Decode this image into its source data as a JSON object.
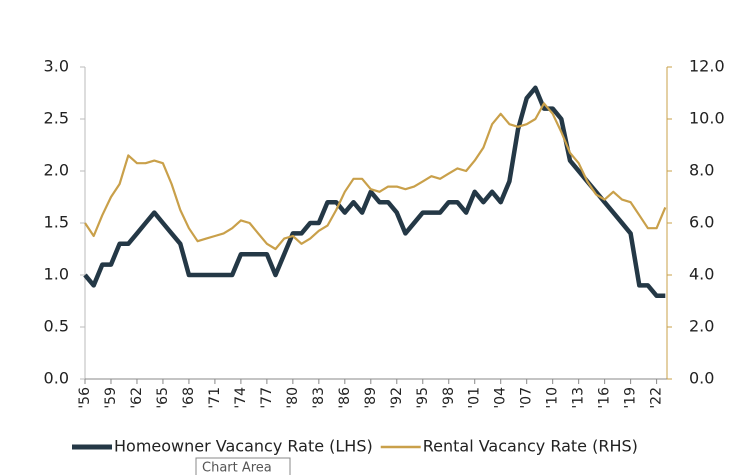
{
  "chart_data": {
    "type": "line",
    "x": [
      1956,
      1957,
      1958,
      1959,
      1960,
      1961,
      1962,
      1963,
      1964,
      1965,
      1966,
      1967,
      1968,
      1969,
      1970,
      1971,
      1972,
      1973,
      1974,
      1975,
      1976,
      1977,
      1978,
      1979,
      1980,
      1981,
      1982,
      1983,
      1984,
      1985,
      1986,
      1987,
      1988,
      1989,
      1990,
      1991,
      1992,
      1993,
      1994,
      1995,
      1996,
      1997,
      1998,
      1999,
      2000,
      2001,
      2002,
      2003,
      2004,
      2005,
      2006,
      2007,
      2008,
      2009,
      2010,
      2011,
      2012,
      2013,
      2014,
      2015,
      2016,
      2017,
      2018,
      2019,
      2020,
      2021,
      2022,
      2023
    ],
    "series": [
      {
        "name": "Homeowner Vacancy Rate (LHS)",
        "color": "#243846",
        "axis": "y",
        "values": [
          1.0,
          0.9,
          1.1,
          1.1,
          1.3,
          1.3,
          1.4,
          1.5,
          1.6,
          1.5,
          1.4,
          1.3,
          1.0,
          1.0,
          1.0,
          1.0,
          1.0,
          1.0,
          1.2,
          1.2,
          1.2,
          1.2,
          1.0,
          1.2,
          1.4,
          1.4,
          1.5,
          1.5,
          1.7,
          1.7,
          1.6,
          1.7,
          1.6,
          1.8,
          1.7,
          1.7,
          1.6,
          1.4,
          1.5,
          1.6,
          1.6,
          1.6,
          1.7,
          1.7,
          1.6,
          1.8,
          1.7,
          1.8,
          1.7,
          1.9,
          2.4,
          2.7,
          2.8,
          2.6,
          2.6,
          2.5,
          2.1,
          2.0,
          1.9,
          1.8,
          1.7,
          1.6,
          1.5,
          1.4,
          0.9,
          0.9,
          0.8,
          0.8
        ]
      },
      {
        "name": "Rental Vacancy Rate (RHS)",
        "color": "#c9a04a",
        "axis": "y2",
        "values": [
          6.0,
          5.5,
          6.3,
          7.0,
          7.5,
          8.6,
          8.3,
          8.3,
          8.4,
          8.3,
          7.5,
          6.5,
          5.8,
          5.3,
          5.4,
          5.5,
          5.6,
          5.8,
          6.1,
          6.0,
          5.6,
          5.2,
          5.0,
          5.4,
          5.5,
          5.2,
          5.4,
          5.7,
          5.9,
          6.5,
          7.2,
          7.7,
          7.7,
          7.3,
          7.2,
          7.4,
          7.4,
          7.3,
          7.4,
          7.6,
          7.8,
          7.7,
          7.9,
          8.1,
          8.0,
          8.4,
          8.9,
          9.8,
          10.2,
          9.8,
          9.7,
          9.8,
          10.0,
          10.6,
          10.2,
          9.5,
          8.7,
          8.3,
          7.6,
          7.1,
          6.9,
          7.2,
          6.9,
          6.8,
          6.3,
          5.8,
          5.8,
          6.6
        ]
      }
    ],
    "xlim": [
      1956,
      2023.2
    ],
    "xticks": [
      {
        "value": 1956,
        "label": "'56"
      },
      {
        "value": 1959,
        "label": "'59"
      },
      {
        "value": 1962,
        "label": "'62"
      },
      {
        "value": 1965,
        "label": "'65"
      },
      {
        "value": 1968,
        "label": "'68"
      },
      {
        "value": 1971,
        "label": "'71"
      },
      {
        "value": 1974,
        "label": "'74"
      },
      {
        "value": 1977,
        "label": "'77"
      },
      {
        "value": 1980,
        "label": "'80"
      },
      {
        "value": 1983,
        "label": "'83"
      },
      {
        "value": 1986,
        "label": "'86"
      },
      {
        "value": 1989,
        "label": "'89"
      },
      {
        "value": 1992,
        "label": "'92"
      },
      {
        "value": 1995,
        "label": "'95"
      },
      {
        "value": 1998,
        "label": "'98"
      },
      {
        "value": 2001,
        "label": "'01"
      },
      {
        "value": 2004,
        "label": "'04"
      },
      {
        "value": 2007,
        "label": "'07"
      },
      {
        "value": 2010,
        "label": "'10"
      },
      {
        "value": 2013,
        "label": "'13"
      },
      {
        "value": 2016,
        "label": "'16"
      },
      {
        "value": 2019,
        "label": "'19"
      },
      {
        "value": 2022,
        "label": "'22"
      }
    ],
    "ylim": [
      0,
      3
    ],
    "yticks": [
      {
        "value": 0,
        "label": "0.0"
      },
      0.5,
      {
        "value": 1,
        "label": "1.0"
      },
      1.5,
      {
        "value": 2,
        "label": "2.0"
      },
      2.5,
      {
        "value": 3,
        "label": "3.0"
      }
    ],
    "y2lim": [
      0,
      12
    ],
    "y2ticks": [
      {
        "value": 0,
        "label": "0.0"
      },
      {
        "value": 2,
        "label": "2.0"
      },
      {
        "value": 4,
        "label": "4.0"
      },
      {
        "value": 6,
        "label": "6.0"
      },
      {
        "value": 8,
        "label": "8.0"
      },
      {
        "value": 10,
        "label": "10.0"
      },
      {
        "value": 12,
        "label": "12.0"
      }
    ],
    "legend": "bottom",
    "tooltip": "Chart Area"
  }
}
